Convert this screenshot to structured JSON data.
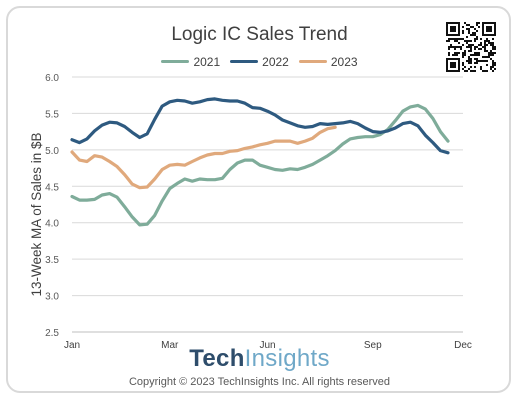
{
  "chart_data": {
    "type": "line",
    "title": "Logic IC Sales Trend",
    "xlabel": "",
    "ylabel": "13-Week MA of Sales in $B",
    "ylim": [
      2.5,
      6.0
    ],
    "yticks": [
      "6.0",
      "5.5",
      "5.0",
      "4.5",
      "4.0",
      "3.5",
      "3.0",
      "2.5"
    ],
    "xlim": [
      0,
      52
    ],
    "xticks": [
      {
        "label": "Jan",
        "x": 0
      },
      {
        "label": "Mar",
        "x": 13
      },
      {
        "label": "Jun",
        "x": 26
      },
      {
        "label": "Sep",
        "x": 40
      },
      {
        "label": "Dec",
        "x": 52
      }
    ],
    "legend_position": "top",
    "grid": true,
    "series": [
      {
        "name": "2021",
        "color": "#7fac9a",
        "points": [
          [
            0,
            4.36
          ],
          [
            1,
            4.31
          ],
          [
            2,
            4.31
          ],
          [
            3,
            4.32
          ],
          [
            4,
            4.38
          ],
          [
            5,
            4.4
          ],
          [
            6,
            4.35
          ],
          [
            7,
            4.22
          ],
          [
            8,
            4.08
          ],
          [
            9,
            3.97
          ],
          [
            10,
            3.98
          ],
          [
            11,
            4.1
          ],
          [
            12,
            4.3
          ],
          [
            13,
            4.47
          ],
          [
            14,
            4.54
          ],
          [
            15,
            4.6
          ],
          [
            16,
            4.57
          ],
          [
            17,
            4.6
          ],
          [
            18,
            4.59
          ],
          [
            19,
            4.59
          ],
          [
            20,
            4.61
          ],
          [
            21,
            4.73
          ],
          [
            22,
            4.82
          ],
          [
            23,
            4.86
          ],
          [
            24,
            4.86
          ],
          [
            25,
            4.79
          ],
          [
            26,
            4.76
          ],
          [
            27,
            4.73
          ],
          [
            28,
            4.72
          ],
          [
            29,
            4.74
          ],
          [
            30,
            4.73
          ],
          [
            31,
            4.76
          ],
          [
            32,
            4.8
          ],
          [
            33,
            4.86
          ],
          [
            34,
            4.92
          ],
          [
            35,
            4.99
          ],
          [
            36,
            5.08
          ],
          [
            37,
            5.15
          ],
          [
            38,
            5.17
          ],
          [
            39,
            5.18
          ],
          [
            40,
            5.18
          ],
          [
            41,
            5.21
          ],
          [
            42,
            5.28
          ],
          [
            43,
            5.4
          ],
          [
            44,
            5.53
          ],
          [
            45,
            5.59
          ],
          [
            46,
            5.61
          ],
          [
            47,
            5.56
          ],
          [
            48,
            5.43
          ],
          [
            49,
            5.25
          ],
          [
            50,
            5.12
          ]
        ]
      },
      {
        "name": "2022",
        "color": "#2e5a80",
        "points": [
          [
            0,
            5.14
          ],
          [
            1,
            5.1
          ],
          [
            2,
            5.15
          ],
          [
            3,
            5.26
          ],
          [
            4,
            5.34
          ],
          [
            5,
            5.38
          ],
          [
            6,
            5.37
          ],
          [
            7,
            5.32
          ],
          [
            8,
            5.24
          ],
          [
            9,
            5.17
          ],
          [
            10,
            5.22
          ],
          [
            11,
            5.42
          ],
          [
            12,
            5.6
          ],
          [
            13,
            5.66
          ],
          [
            14,
            5.68
          ],
          [
            15,
            5.67
          ],
          [
            16,
            5.64
          ],
          [
            17,
            5.66
          ],
          [
            18,
            5.69
          ],
          [
            19,
            5.7
          ],
          [
            20,
            5.68
          ],
          [
            21,
            5.67
          ],
          [
            22,
            5.67
          ],
          [
            23,
            5.64
          ],
          [
            24,
            5.58
          ],
          [
            25,
            5.57
          ],
          [
            26,
            5.53
          ],
          [
            27,
            5.48
          ],
          [
            28,
            5.41
          ],
          [
            29,
            5.37
          ],
          [
            30,
            5.33
          ],
          [
            31,
            5.31
          ],
          [
            32,
            5.32
          ],
          [
            33,
            5.36
          ],
          [
            34,
            5.35
          ],
          [
            35,
            5.36
          ],
          [
            36,
            5.37
          ],
          [
            37,
            5.39
          ],
          [
            38,
            5.36
          ],
          [
            39,
            5.3
          ],
          [
            40,
            5.25
          ],
          [
            41,
            5.24
          ],
          [
            42,
            5.26
          ],
          [
            43,
            5.3
          ],
          [
            44,
            5.36
          ],
          [
            45,
            5.38
          ],
          [
            46,
            5.33
          ],
          [
            47,
            5.2
          ],
          [
            48,
            5.1
          ],
          [
            49,
            4.99
          ],
          [
            50,
            4.96
          ]
        ]
      },
      {
        "name": "2023",
        "color": "#e0a97c",
        "points": [
          [
            0,
            4.97
          ],
          [
            1,
            4.86
          ],
          [
            2,
            4.84
          ],
          [
            3,
            4.92
          ],
          [
            4,
            4.9
          ],
          [
            5,
            4.84
          ],
          [
            6,
            4.77
          ],
          [
            7,
            4.66
          ],
          [
            8,
            4.53
          ],
          [
            9,
            4.48
          ],
          [
            10,
            4.49
          ],
          [
            11,
            4.6
          ],
          [
            12,
            4.73
          ],
          [
            13,
            4.79
          ],
          [
            14,
            4.8
          ],
          [
            15,
            4.79
          ],
          [
            16,
            4.84
          ],
          [
            17,
            4.89
          ],
          [
            18,
            4.93
          ],
          [
            19,
            4.95
          ],
          [
            20,
            4.95
          ],
          [
            21,
            4.98
          ],
          [
            22,
            4.99
          ],
          [
            23,
            5.02
          ],
          [
            24,
            5.04
          ],
          [
            25,
            5.07
          ],
          [
            26,
            5.09
          ],
          [
            27,
            5.12
          ],
          [
            28,
            5.12
          ],
          [
            29,
            5.12
          ],
          [
            30,
            5.09
          ],
          [
            31,
            5.12
          ],
          [
            32,
            5.16
          ],
          [
            33,
            5.24
          ],
          [
            34,
            5.29
          ],
          [
            35,
            5.31
          ]
        ]
      }
    ]
  },
  "brand": {
    "part1": "Tech",
    "part2": "Insights"
  },
  "copyright": "Copyright © 2023 TechInsights Inc.  All rights reserved",
  "qr_label": "qr-code"
}
